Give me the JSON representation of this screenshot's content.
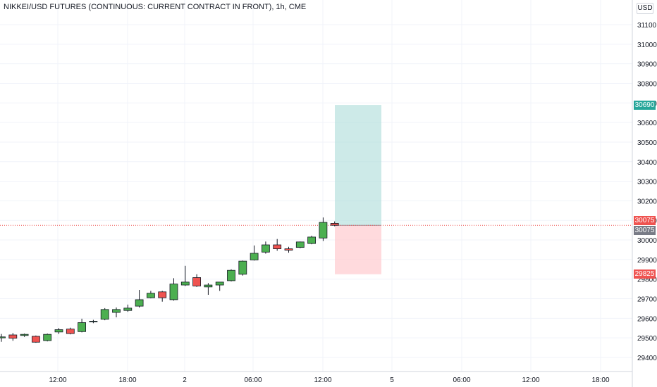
{
  "title": "NIKKEI/USD FUTURES (CONTINUOUS: CURRENT CONTRACT IN FRONT), 1h, CME",
  "currency": "USD",
  "colors": {
    "up": "#4caf50",
    "down": "#ef5350",
    "target_zone": "#b2dfdb",
    "stop_zone": "#ffcdd2",
    "target_tag": "#26a69a",
    "stop_tag": "#ef5350",
    "last_tag": "#787b86",
    "entry_tag": "#ef5350"
  },
  "chart_data": {
    "type": "candlestick",
    "ylim": [
      29370,
      31150
    ],
    "y_ticks": [
      29400,
      29500,
      29600,
      29700,
      29800,
      29900,
      30000,
      30100,
      30200,
      30300,
      30400,
      30500,
      30600,
      30700,
      30800,
      30900,
      31000,
      31100
    ],
    "x_ticks": [
      "12:00",
      "18:00",
      "2",
      "06:00",
      "12:00",
      "5",
      "06:00",
      "12:00",
      "18:00"
    ],
    "candles": [
      {
        "o": 29500,
        "h": 29520,
        "l": 29480,
        "c": 29505
      },
      {
        "o": 29515,
        "h": 29525,
        "l": 29485,
        "c": 29498
      },
      {
        "o": 29512,
        "h": 29522,
        "l": 29505,
        "c": 29518
      },
      {
        "o": 29508,
        "h": 29512,
        "l": 29475,
        "c": 29478
      },
      {
        "o": 29486,
        "h": 29522,
        "l": 29482,
        "c": 29518
      },
      {
        "o": 29530,
        "h": 29550,
        "l": 29520,
        "c": 29542
      },
      {
        "o": 29545,
        "h": 29552,
        "l": 29518,
        "c": 29522
      },
      {
        "o": 29532,
        "h": 29598,
        "l": 29528,
        "c": 29578
      },
      {
        "o": 29582,
        "h": 29592,
        "l": 29575,
        "c": 29585
      },
      {
        "o": 29595,
        "h": 29652,
        "l": 29590,
        "c": 29645
      },
      {
        "o": 29630,
        "h": 29655,
        "l": 29605,
        "c": 29645
      },
      {
        "o": 29640,
        "h": 29670,
        "l": 29633,
        "c": 29652
      },
      {
        "o": 29662,
        "h": 29745,
        "l": 29655,
        "c": 29695
      },
      {
        "o": 29705,
        "h": 29740,
        "l": 29702,
        "c": 29728
      },
      {
        "o": 29735,
        "h": 29740,
        "l": 29685,
        "c": 29705
      },
      {
        "o": 29695,
        "h": 29805,
        "l": 29690,
        "c": 29775
      },
      {
        "o": 29770,
        "h": 29868,
        "l": 29765,
        "c": 29785
      },
      {
        "o": 29808,
        "h": 29825,
        "l": 29760,
        "c": 29765
      },
      {
        "o": 29760,
        "h": 29780,
        "l": 29720,
        "c": 29770
      },
      {
        "o": 29770,
        "h": 29780,
        "l": 29740,
        "c": 29785
      },
      {
        "o": 29792,
        "h": 29850,
        "l": 29788,
        "c": 29845
      },
      {
        "o": 29825,
        "h": 29895,
        "l": 29818,
        "c": 29892
      },
      {
        "o": 29898,
        "h": 29972,
        "l": 29895,
        "c": 29932
      },
      {
        "o": 29938,
        "h": 29992,
        "l": 29930,
        "c": 29975
      },
      {
        "o": 29975,
        "h": 30005,
        "l": 29945,
        "c": 29955
      },
      {
        "o": 29955,
        "h": 29965,
        "l": 29935,
        "c": 29948
      },
      {
        "o": 29962,
        "h": 29992,
        "l": 29958,
        "c": 29990
      },
      {
        "o": 29982,
        "h": 30022,
        "l": 29978,
        "c": 30015
      },
      {
        "o": 30010,
        "h": 30115,
        "l": 29995,
        "c": 30090
      },
      {
        "o": 30085,
        "h": 30095,
        "l": 30070,
        "c": 30075
      }
    ],
    "position": {
      "entry": 30075,
      "target": 30690,
      "stop": 29825
    },
    "price_tags": {
      "target": "30690",
      "entry": "30075",
      "last": "30075",
      "stop": "29825"
    }
  }
}
